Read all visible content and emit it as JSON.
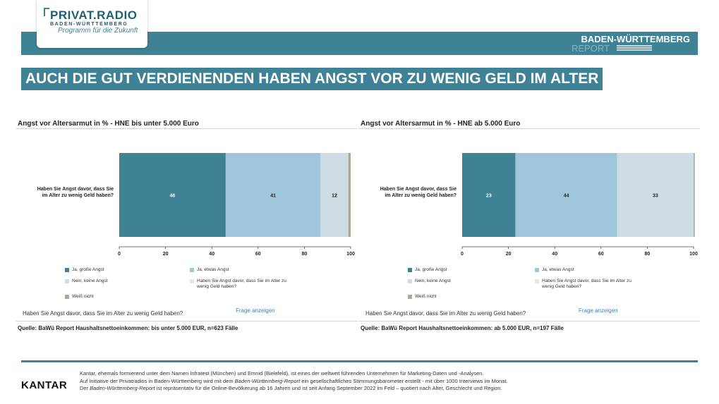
{
  "header": {
    "logo_main": "PRIVAT.RADIO",
    "logo_sub": "BADEN-WÜRTTEMBERG",
    "logo_tag": "Programm für die Zukunft",
    "bw_title": "BADEN-WÜRTTEMBERG",
    "bw_report": "REPORT"
  },
  "headline": "AUCH DIE GUT VERDIENENDEN HABEN ANGST VOR ZU WENIG GELD IM ALTER",
  "colors": {
    "brand": "#3f8296",
    "ja_grosse": "#3f8296",
    "ja_etwas": "#9fc6da",
    "nein": "#cddde3",
    "weiss_nicht": "#a9aa96"
  },
  "panels": [
    {
      "title": "Angst vor Altersarmut in % - HNE bis unter 5.000 Euro",
      "question_footer": "Haben Sie Angst davor, dass Sie im Alter zu wenig Geld haben?",
      "link_label": "Frage anzeigen",
      "source": "Quelle: BaWü Report Haushaltsnettoeinkommen: bis unter 5.000 EUR, n=623 Fälle",
      "legend": [
        "Ja, große Angst",
        "Ja, etwas Angst",
        "Nein, keine Angst",
        "Haben Sie Angst davor, dass Sie im Alter zu wenig Geld haben?",
        "Weiß nicht"
      ]
    },
    {
      "title": "Angst vor Altersarmut in % - HNE ab 5.000 Euro",
      "question_footer": "Haben Sie Angst davor, dass Sie im Alter zu wenig Geld haben?",
      "link_label": "Frage anzeigen",
      "source": "Quelle: BaWü Report Haushaltsnettoeinkommen: ab 5.000 EUR, n=197 Fälle",
      "legend": [
        "Ja, große Angst",
        "Ja, etwas Angst",
        "Nein, keine Angst",
        "Haben Sie Angst davor, dass Sie im Alter zu wenig Geld haben?",
        "Weiß nicht"
      ]
    }
  ],
  "chart_data": [
    {
      "type": "bar",
      "orientation": "horizontal",
      "stacked": true,
      "title": "Angst vor Altersarmut in % - HNE bis unter 5.000 Euro",
      "categories": [
        "Haben Sie Angst davor, dass Sie im Alter zu wenig Geld haben?"
      ],
      "series": [
        {
          "name": "Ja, große Angst",
          "values": [
            46
          ],
          "label": "46"
        },
        {
          "name": "Ja, etwas Angst",
          "values": [
            41
          ],
          "label": "41"
        },
        {
          "name": "Nein, keine Angst",
          "values": [
            12
          ],
          "label": "12"
        },
        {
          "name": "Weiß nicht",
          "values": [
            1
          ],
          "label": ""
        }
      ],
      "xlim": [
        0,
        100
      ],
      "xticks": [
        "0",
        "20",
        "40",
        "60",
        "80",
        "100"
      ],
      "grid": false,
      "legend_position": "bottom"
    },
    {
      "type": "bar",
      "orientation": "horizontal",
      "stacked": true,
      "title": "Angst vor Altersarmut in % - HNE ab 5.000 Euro",
      "categories": [
        "Haben Sie Angst davor, dass Sie im Alter zu wenig Geld haben?"
      ],
      "series": [
        {
          "name": "Ja, große Angst",
          "values": [
            23
          ],
          "label": "23"
        },
        {
          "name": "Ja, etwas Angst",
          "values": [
            44
          ],
          "label": "44"
        },
        {
          "name": "Nein, keine Angst",
          "values": [
            33
          ],
          "label": "33"
        },
        {
          "name": "Weiß nicht",
          "values": [
            0.5
          ],
          "label": ""
        }
      ],
      "xlim": [
        0,
        100
      ],
      "xticks": [
        "0",
        "20",
        "40",
        "60",
        "80",
        "100"
      ],
      "grid": false,
      "legend_position": "bottom"
    }
  ],
  "footer": {
    "kantar": "KANTAR",
    "line1": "Kantar, ehemals formierend unter dem Namen Infratest (München) und Emnid (Bielefeld), ist eines der weltweit führenden Unternehmen für Marketing-Daten und -Analysen.",
    "line2_a": "Auf Initiative der Privatradios in Baden-Württemberg wird mit dem ",
    "line2_em": "Baden-Württemberg-Report",
    "line2_b": " ein gesellschaftliches Stimmungsbarometer erstellt - mit über 1000 Interviews im Monat.",
    "line3_a": "Der ",
    "line3_em": "Baden-Württemberg-Report",
    "line3_b": " ist repräsentativ für die Online-Bevölkerung ab 16 Jahren und ist seit Anfang September 2022 im Feld – quotiert nach Alter, Geschlecht und Region."
  }
}
